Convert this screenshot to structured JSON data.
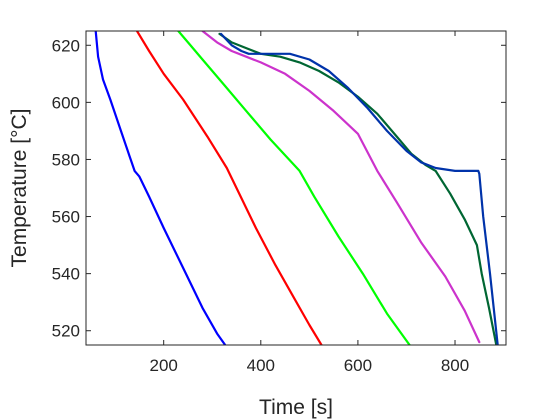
{
  "chart_data": {
    "type": "line",
    "title": "",
    "xlabel": "Time [s]",
    "ylabel": "Temperature [°C]",
    "xlim": [
      40,
      905
    ],
    "ylim": [
      515,
      625
    ],
    "xticks": [
      200,
      400,
      600,
      800
    ],
    "yticks": [
      520,
      540,
      560,
      580,
      600,
      620
    ],
    "grid": false,
    "series": [
      {
        "color": "#0000ff",
        "x": [
          60,
          65,
          75,
          90,
          110,
          130,
          140,
          150,
          170,
          200,
          240,
          280,
          310,
          335
        ],
        "y": [
          625,
          616,
          608,
          601,
          591,
          581,
          576,
          574,
          567,
          556,
          542,
          528,
          519,
          513
        ]
      },
      {
        "color": "#ff0000",
        "x": [
          145,
          170,
          200,
          240,
          290,
          330,
          350,
          390,
          430,
          470,
          500,
          525
        ],
        "y": [
          625,
          618,
          610,
          601,
          588,
          577,
          570,
          556,
          543,
          531,
          522,
          515
        ]
      },
      {
        "color": "#00ff00",
        "x": [
          230,
          250,
          280,
          320,
          370,
          420,
          480,
          510,
          560,
          610,
          660,
          715
        ],
        "y": [
          625,
          621,
          615,
          607,
          597,
          587,
          576,
          567,
          553,
          540,
          526,
          513
        ]
      },
      {
        "color": "#cc33cc",
        "x": [
          280,
          310,
          340,
          370,
          400,
          450,
          500,
          550,
          600,
          640,
          680,
          730,
          780,
          820,
          850
        ],
        "y": [
          625,
          621,
          618,
          616,
          614,
          610,
          604,
          597,
          589,
          576,
          565,
          551,
          539,
          527,
          516
        ]
      },
      {
        "color": "#006633",
        "x": [
          315,
          340,
          370,
          400,
          440,
          480,
          520,
          560,
          600,
          640,
          680,
          710,
          740,
          760,
          790,
          820,
          845,
          855,
          870,
          885
        ],
        "y": [
          624,
          621,
          619,
          617,
          616,
          614,
          611,
          607,
          602,
          596,
          588,
          582,
          578,
          576,
          568,
          559,
          550,
          540,
          528,
          515
        ]
      },
      {
        "color": "#0033aa",
        "x": [
          318,
          340,
          360,
          375,
          400,
          430,
          460,
          500,
          540,
          580,
          620,
          660,
          700,
          730,
          760,
          800,
          830,
          848,
          850,
          858,
          872,
          888
        ],
        "y": [
          624,
          620,
          618,
          617,
          617,
          617,
          617,
          615,
          611,
          605,
          598,
          590,
          583,
          579,
          577,
          576,
          576,
          576,
          575,
          560,
          540,
          515
        ]
      }
    ]
  }
}
